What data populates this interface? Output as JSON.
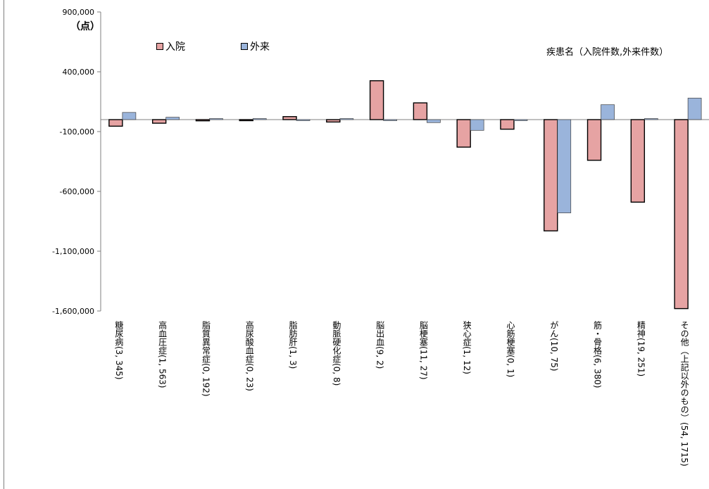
{
  "chart_data": {
    "type": "bar",
    "unit_label": "（点）",
    "notation": "疾患名（入院件数,外来件数）",
    "categories": [
      "糖尿病(3, 345)",
      "高血圧症(1, 563)",
      "脂質異常症(0, 192)",
      "高尿酸血症(0, 23)",
      "脂肪肝(1, 3)",
      "動脈硬化症(0, 8)",
      "脳出血(9, 2)",
      "脳梗塞(11, 27)",
      "狭心症(1, 12)",
      "心筋梗塞(0, 1)",
      "がん(10, 75)",
      "筋・骨格(6, 380)",
      "精神(19, 251)",
      "その他（上記以外のもの）(54, 1715)"
    ],
    "series": [
      {
        "name": "入院",
        "color": "#e6a3a3",
        "values": [
          -55000,
          -30000,
          -10000,
          -5000,
          25000,
          -20000,
          325000,
          140000,
          -230000,
          -80000,
          -930000,
          -340000,
          -690000,
          -1580000
        ]
      },
      {
        "name": "外来",
        "color": "#9ab4db",
        "values": [
          60000,
          20000,
          5000,
          5000,
          -5000,
          5000,
          -5000,
          -25000,
          -90000,
          -5000,
          -780000,
          125000,
          5000,
          180000
        ]
      }
    ],
    "y_ticks": [
      "900,000",
      "400,000",
      "-100,000",
      "-600,000",
      "-1,100,000",
      "-1,600,000"
    ],
    "ylim": [
      -1600000,
      900000
    ],
    "grid": false,
    "legend_position": "top-left"
  }
}
